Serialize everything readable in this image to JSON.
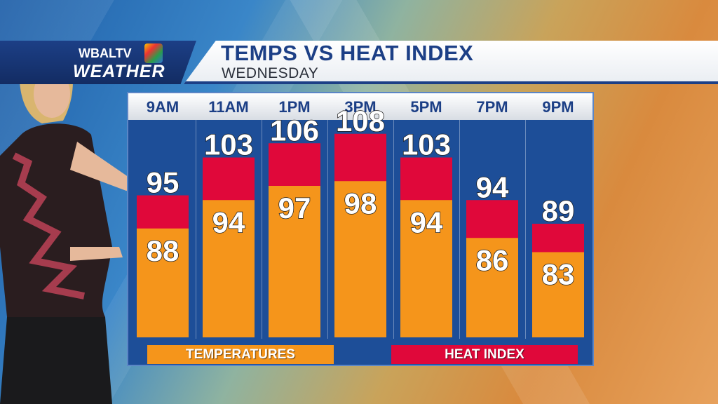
{
  "header": {
    "logo_top": "WBALTV",
    "logo_bottom": "WEATHER",
    "title": "TEMPS VS HEAT INDEX",
    "subtitle": "WEDNESDAY"
  },
  "legend": {
    "temperatures": "TEMPERATURES",
    "heat_index": "HEAT INDEX"
  },
  "colors": {
    "temperature": "#f5951b",
    "heat_index": "#e0083a",
    "panel": "#1d4e98",
    "title_blue": "#1c3f86"
  },
  "chart_data": {
    "type": "bar",
    "categories": [
      "9AM",
      "11AM",
      "1PM",
      "3PM",
      "5PM",
      "7PM",
      "9PM"
    ],
    "series": [
      {
        "name": "TEMPERATURES",
        "values": [
          88,
          94,
          97,
          98,
          94,
          86,
          83
        ]
      },
      {
        "name": "HEAT INDEX",
        "values": [
          95,
          103,
          106,
          108,
          103,
          94,
          89
        ]
      }
    ],
    "title": "TEMPS VS HEAT INDEX",
    "subtitle": "WEDNESDAY",
    "xlabel": "",
    "ylabel": "",
    "ylim": [
      65,
      114
    ],
    "legend_placement": "bottom",
    "grid": false
  }
}
